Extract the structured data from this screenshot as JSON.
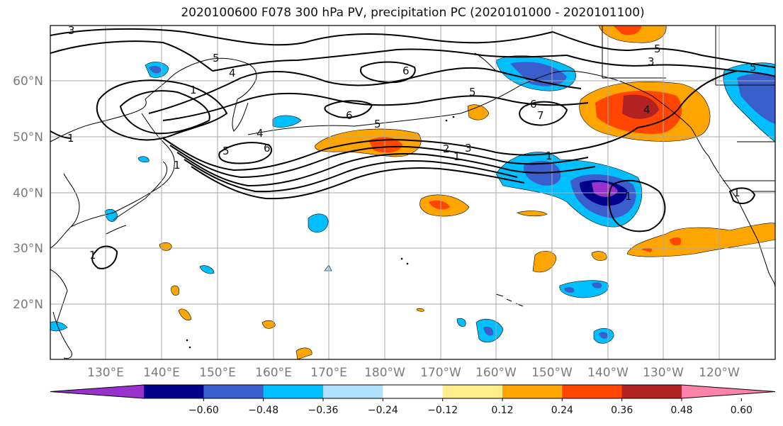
{
  "title": "2020100600 F078 300 hPa PV, precipitation PC (2020101000 - 2020101100)",
  "latitude_labels": [
    "60°N",
    "50°N",
    "40°N",
    "30°N",
    "20°N"
  ],
  "longitude_labels": [
    "130°E",
    "140°E",
    "150°E",
    "160°E",
    "170°E",
    "180°W",
    "170°W",
    "160°W",
    "150°W",
    "140°W",
    "130°W",
    "120°W"
  ],
  "pv_contour_labels": [
    "3",
    "5",
    "4",
    "1",
    "1",
    "6",
    "5",
    "4",
    "5",
    "6",
    "5",
    "6",
    "2",
    "1",
    "3",
    "5",
    "6",
    "7",
    "3",
    "5",
    "4",
    "1",
    "1",
    "1",
    "1",
    "1"
  ],
  "colorbar": {
    "ticks": [
      "−0.60",
      "−0.48",
      "−0.36",
      "−0.24",
      "−0.12",
      "0.12",
      "0.24",
      "0.36",
      "0.48",
      "0.60"
    ],
    "colors": [
      "#9932CC",
      "#00008B",
      "#3A5FCD",
      "#00BFFF",
      "#B0E2FF",
      "#FFFFFF",
      "#FFEC8B",
      "#FFA500",
      "#FF4500",
      "#B22222",
      "#FF82AB"
    ]
  }
}
